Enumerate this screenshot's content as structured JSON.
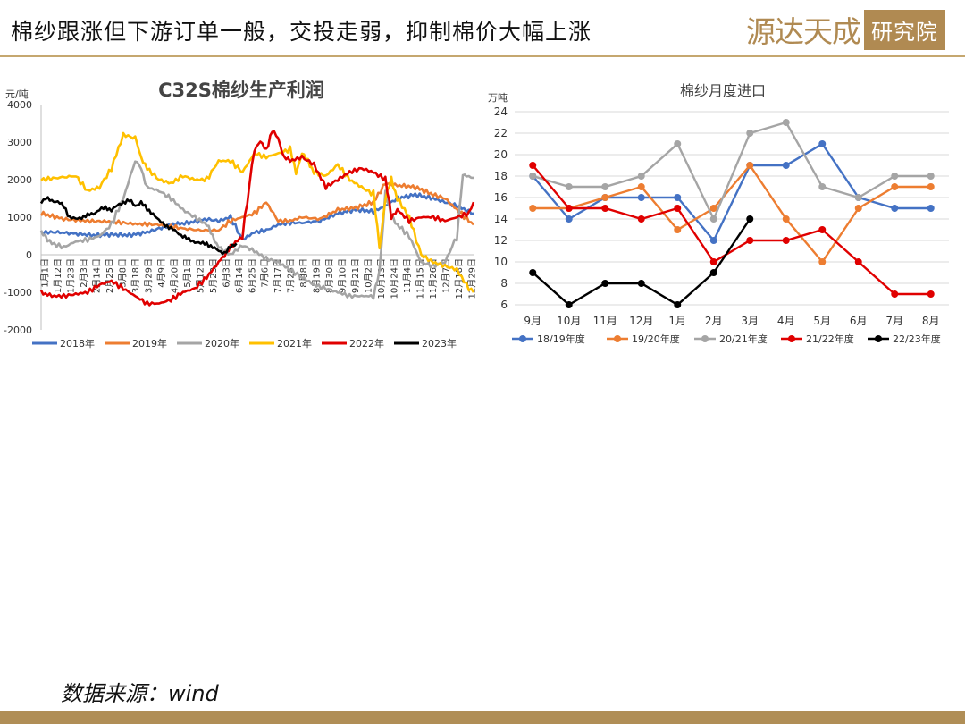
{
  "header": {
    "title": "棉纱跟涨但下游订单一般，交投走弱，抑制棉价大幅上涨",
    "logo_main": "源达天成",
    "logo_box": "研究院"
  },
  "footer": {
    "source": "数据来源：wind"
  },
  "colors": {
    "accent": "#b08e56",
    "rule": "#c5a76f",
    "logo": "#b08a52"
  },
  "chart_data": [
    {
      "type": "line",
      "title": "C32S棉纱生产利润",
      "ylabel": "元/吨",
      "ylim": [
        -2000,
        4000
      ],
      "yticks": [
        -2000,
        -1000,
        0,
        1000,
        2000,
        3000,
        4000
      ],
      "x_ticks": [
        "1月1日",
        "1月12日",
        "1月23日",
        "2月3日",
        "2月14日",
        "2月25日",
        "3月8日",
        "3月18日",
        "3月29日",
        "4月9日",
        "4月20日",
        "5月1日",
        "5月12日",
        "5月23日",
        "6月3日",
        "6月14日",
        "6月25日",
        "7月6日",
        "7月17日",
        "7月28日",
        "8月8日",
        "8月19日",
        "8月30日",
        "9月10日",
        "9月21日",
        "10月2日",
        "10月13日",
        "10月24日",
        "11月4日",
        "11月15日",
        "11月26日",
        "12月7日",
        "12月18日",
        "12月29日"
      ],
      "x_domain": [
        1,
        364
      ],
      "legend_position": "bottom",
      "series": [
        {
          "name": "2018年",
          "color": "#4472c4",
          "x": [
            1,
            15,
            30,
            45,
            60,
            75,
            90,
            100,
            110,
            125,
            140,
            150,
            160,
            170,
            180,
            190,
            200,
            210,
            220,
            235,
            250,
            265,
            280,
            290,
            300,
            315,
            330,
            340,
            350,
            364
          ],
          "values": [
            600,
            600,
            560,
            520,
            540,
            520,
            600,
            700,
            800,
            850,
            950,
            900,
            1000,
            400,
            600,
            650,
            800,
            850,
            850,
            900,
            1100,
            1200,
            1150,
            1300,
            1500,
            1600,
            1500,
            1400,
            1300,
            1100
          ]
        },
        {
          "name": "2019年",
          "color": "#ed7d31",
          "x": [
            1,
            20,
            40,
            60,
            80,
            100,
            120,
            135,
            150,
            160,
            170,
            180,
            190,
            200,
            210,
            220,
            235,
            250,
            265,
            280,
            290,
            300,
            315,
            330,
            340,
            350,
            364
          ],
          "values": [
            1100,
            950,
            900,
            880,
            820,
            800,
            700,
            650,
            650,
            900,
            1000,
            1100,
            1400,
            900,
            900,
            1000,
            950,
            1200,
            1250,
            1400,
            1900,
            1850,
            1800,
            1600,
            1500,
            1200,
            800
          ]
        },
        {
          "name": "2020年",
          "color": "#a5a5a5",
          "x": [
            1,
            10,
            20,
            30,
            40,
            50,
            60,
            70,
            80,
            85,
            90,
            100,
            110,
            120,
            130,
            140,
            145,
            150,
            160,
            170,
            180,
            190,
            200,
            210,
            220,
            230,
            240,
            250,
            260,
            270,
            280,
            285,
            290,
            295,
            300,
            310,
            320,
            330,
            340,
            350,
            355,
            358,
            364
          ],
          "values": [
            600,
            300,
            200,
            350,
            400,
            500,
            800,
            1500,
            2500,
            2300,
            1800,
            1700,
            1500,
            1200,
            1000,
            800,
            500,
            200,
            0,
            250,
            100,
            -100,
            -200,
            -400,
            -600,
            -800,
            -900,
            -1000,
            -1100,
            -1100,
            -1100,
            -500,
            1700,
            1000,
            800,
            500,
            -200,
            -300,
            -200,
            500,
            2100,
            2100,
            2050
          ]
        },
        {
          "name": "2021年",
          "color": "#ffc000",
          "x": [
            1,
            15,
            30,
            40,
            50,
            60,
            70,
            80,
            85,
            90,
            100,
            110,
            120,
            130,
            140,
            150,
            160,
            170,
            180,
            190,
            200,
            210,
            215,
            220,
            225,
            230,
            240,
            250,
            260,
            270,
            280,
            285,
            290,
            295,
            300,
            310,
            320,
            330,
            340,
            350,
            360,
            364
          ],
          "values": [
            2000,
            2050,
            2100,
            1700,
            1800,
            2300,
            3200,
            3100,
            2600,
            2300,
            2000,
            1900,
            2100,
            2000,
            2000,
            2500,
            2500,
            2200,
            2700,
            2600,
            2700,
            2800,
            2200,
            2700,
            2500,
            2200,
            2100,
            2400,
            2000,
            1800,
            1600,
            200,
            1500,
            2000,
            1500,
            1000,
            0,
            -200,
            -300,
            -400,
            -900,
            -1000
          ]
        },
        {
          "name": "2022年",
          "color": "#e00000",
          "x": [
            1,
            10,
            20,
            30,
            40,
            50,
            60,
            70,
            80,
            90,
            100,
            110,
            120,
            130,
            140,
            150,
            155,
            160,
            170,
            180,
            185,
            190,
            195,
            200,
            205,
            210,
            220,
            230,
            240,
            250,
            260,
            270,
            280,
            290,
            295,
            300,
            310,
            320,
            330,
            340,
            350,
            360,
            364
          ],
          "values": [
            -1000,
            -1100,
            -1100,
            -1050,
            -1000,
            -800,
            -700,
            -900,
            -1100,
            -1300,
            -1300,
            -1200,
            -1000,
            -900,
            -600,
            -200,
            0,
            200,
            500,
            2800,
            3000,
            2800,
            3300,
            3100,
            2600,
            2500,
            2600,
            2400,
            1800,
            2000,
            2200,
            2300,
            2200,
            2000,
            1000,
            1200,
            900,
            1000,
            1000,
            900,
            1000,
            1100,
            1400
          ]
        },
        {
          "name": "2023年",
          "color": "#000000",
          "x": [
            1,
            5,
            10,
            15,
            20,
            25,
            30,
            35,
            40,
            45,
            50,
            55,
            60,
            65,
            70,
            75,
            80,
            85,
            90,
            95,
            100,
            105,
            110,
            115,
            120,
            125,
            130,
            135,
            140,
            145,
            150,
            155,
            160,
            165
          ],
          "values": [
            1400,
            1500,
            1450,
            1400,
            1300,
            1000,
            950,
            1000,
            1050,
            1100,
            1200,
            1250,
            1200,
            1300,
            1400,
            1450,
            1300,
            1400,
            1200,
            1100,
            900,
            800,
            700,
            600,
            500,
            400,
            350,
            300,
            300,
            200,
            100,
            50,
            200,
            300
          ]
        }
      ]
    },
    {
      "type": "line",
      "title": "棉纱月度进口",
      "ylabel": "万吨",
      "ylim": [
        6,
        24
      ],
      "yticks": [
        6,
        8,
        10,
        12,
        14,
        16,
        18,
        20,
        22,
        24
      ],
      "categories": [
        "9月",
        "10月",
        "11月",
        "12月",
        "1月",
        "2月",
        "3月",
        "4月",
        "5月",
        "6月",
        "7月",
        "8月"
      ],
      "legend_position": "bottom",
      "series": [
        {
          "name": "18/19年度",
          "color": "#4472c4",
          "values": [
            18,
            14,
            16,
            16,
            16,
            12,
            19,
            19,
            21,
            16,
            15,
            15
          ]
        },
        {
          "name": "19/20年度",
          "color": "#ed7d31",
          "values": [
            15,
            15,
            16,
            17,
            13,
            15,
            19,
            14,
            10,
            15,
            17,
            17
          ]
        },
        {
          "name": "20/21年度",
          "color": "#a5a5a5",
          "values": [
            18,
            17,
            17,
            18,
            21,
            14,
            22,
            23,
            17,
            16,
            18,
            18
          ]
        },
        {
          "name": "21/22年度",
          "color": "#e00000",
          "values": [
            19,
            15,
            15,
            14,
            15,
            10,
            12,
            12,
            13,
            10,
            7,
            7
          ]
        },
        {
          "name": "22/23年度",
          "color": "#000000",
          "values": [
            9,
            6,
            8,
            8,
            6,
            9,
            14,
            null,
            null,
            null,
            null,
            null
          ]
        }
      ]
    }
  ]
}
